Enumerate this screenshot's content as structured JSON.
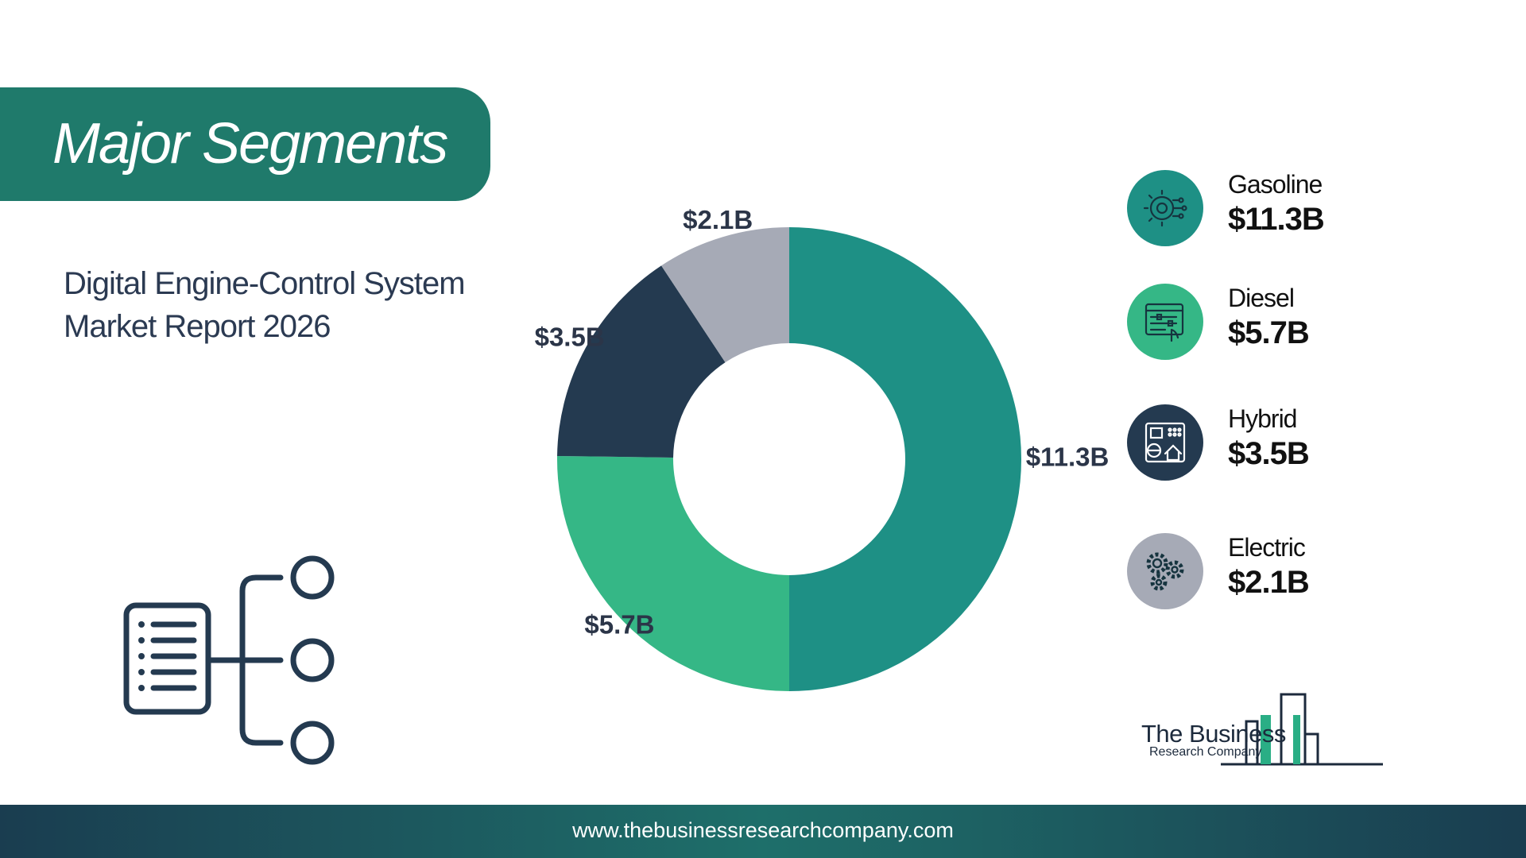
{
  "header": {
    "title": "Major Segments"
  },
  "report": {
    "line1": "Digital Engine-Control System",
    "line2": "Market Report 2026"
  },
  "chart_data": {
    "type": "pie",
    "donut": true,
    "categories": [
      "Gasoline",
      "Diesel",
      "Hybrid",
      "Electric"
    ],
    "values": [
      11.3,
      5.7,
      3.5,
      2.1
    ],
    "data_labels": [
      "$11.3B",
      "$5.7B",
      "$3.5B",
      "$2.1B"
    ],
    "unit": "$B",
    "colors": [
      "#1e9085",
      "#35b786",
      "#243a50",
      "#a6aab6"
    ],
    "legend_placement": "right"
  },
  "legend": [
    {
      "name": "Gasoline",
      "value": "$11.3B",
      "icon": "engine-chip-icon",
      "color": "#1e9085"
    },
    {
      "name": "Diesel",
      "value": "$5.7B",
      "icon": "control-panel-icon",
      "color": "#35b786"
    },
    {
      "name": "Hybrid",
      "value": "$3.5B",
      "icon": "dashboard-home-icon",
      "color": "#243a50"
    },
    {
      "name": "Electric",
      "value": "$2.1B",
      "icon": "gears-icon",
      "color": "#a6aab6"
    }
  ],
  "logo": {
    "line1": "The Business",
    "line2": "Research Company"
  },
  "footer": {
    "url": "www.thebusinessresearchcompany.com"
  },
  "colors": {
    "banner": "#1f7a6b",
    "text_dark": "#2b3a52"
  }
}
